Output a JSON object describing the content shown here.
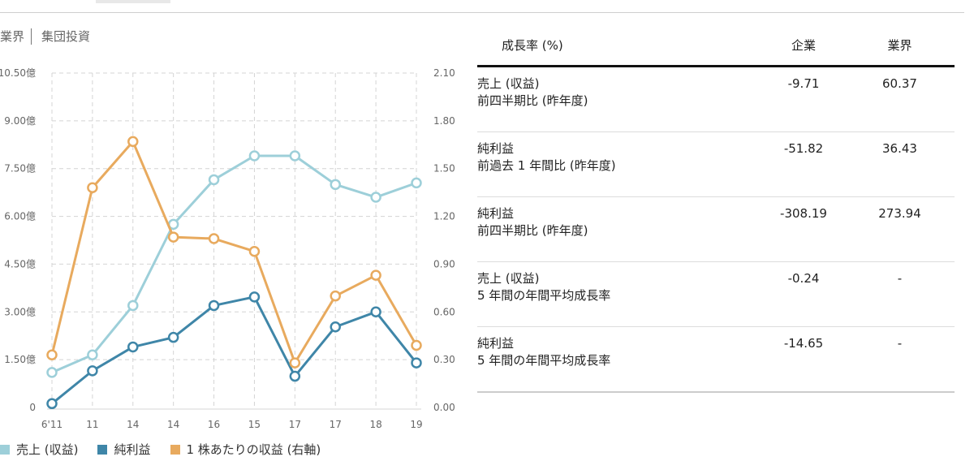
{
  "tabs": [
    "業界",
    "集団投資"
  ],
  "chart_data": {
    "type": "line",
    "categories": [
      "6'11",
      "11",
      "14",
      "14",
      "16",
      "15",
      "17",
      "17",
      "18",
      "19"
    ],
    "y_left_ticks": [
      "0",
      "1.50億",
      "3.00億",
      "4.50億",
      "6.00億",
      "7.50億",
      "9.00億",
      "10.50億"
    ],
    "y_right_ticks": [
      "0.00",
      "0.30",
      "0.60",
      "0.90",
      "1.20",
      "1.50",
      "1.80",
      "2.10"
    ],
    "ylim_left": [
      0,
      10.5
    ],
    "ylim_right": [
      0,
      2.1
    ],
    "grid": true,
    "legend_position": "bottom",
    "series": [
      {
        "name": "売上 (収益)",
        "axis": "left",
        "color": "#9dcfd9",
        "values": [
          1.1,
          1.65,
          3.2,
          5.75,
          7.15,
          7.9,
          7.9,
          7.0,
          6.6,
          7.05
        ]
      },
      {
        "name": "純利益",
        "axis": "left",
        "color": "#3f86a8",
        "values": [
          0.12,
          1.15,
          1.9,
          2.2,
          3.2,
          3.47,
          0.98,
          2.53,
          3.0,
          1.4
        ]
      },
      {
        "name": "1 株あたりの収益 (右軸)",
        "axis": "right",
        "color": "#e8aa5e",
        "values": [
          0.33,
          1.38,
          1.67,
          1.07,
          1.06,
          0.98,
          0.28,
          0.7,
          0.83,
          0.39
        ]
      }
    ]
  },
  "table": {
    "headers": [
      "成長率 (%)",
      "企業",
      "業界"
    ],
    "rows": [
      {
        "label1": "売上 (収益)",
        "label2": "前四半期比 (昨年度)",
        "company": "-9.71",
        "industry": "60.37"
      },
      {
        "label1": "純利益",
        "label2": "前過去 1 年間比 (昨年度)",
        "company": "-51.82",
        "industry": "36.43"
      },
      {
        "label1": "純利益",
        "label2": "前四半期比 (昨年度)",
        "company": "-308.19",
        "industry": "273.94"
      },
      {
        "label1": "売上 (収益)",
        "label2": "5 年間の年間平均成長率",
        "company": "-0.24",
        "industry": "-"
      },
      {
        "label1": "純利益",
        "label2": "5 年間の年間平均成長率",
        "company": "-14.65",
        "industry": "-"
      }
    ]
  }
}
